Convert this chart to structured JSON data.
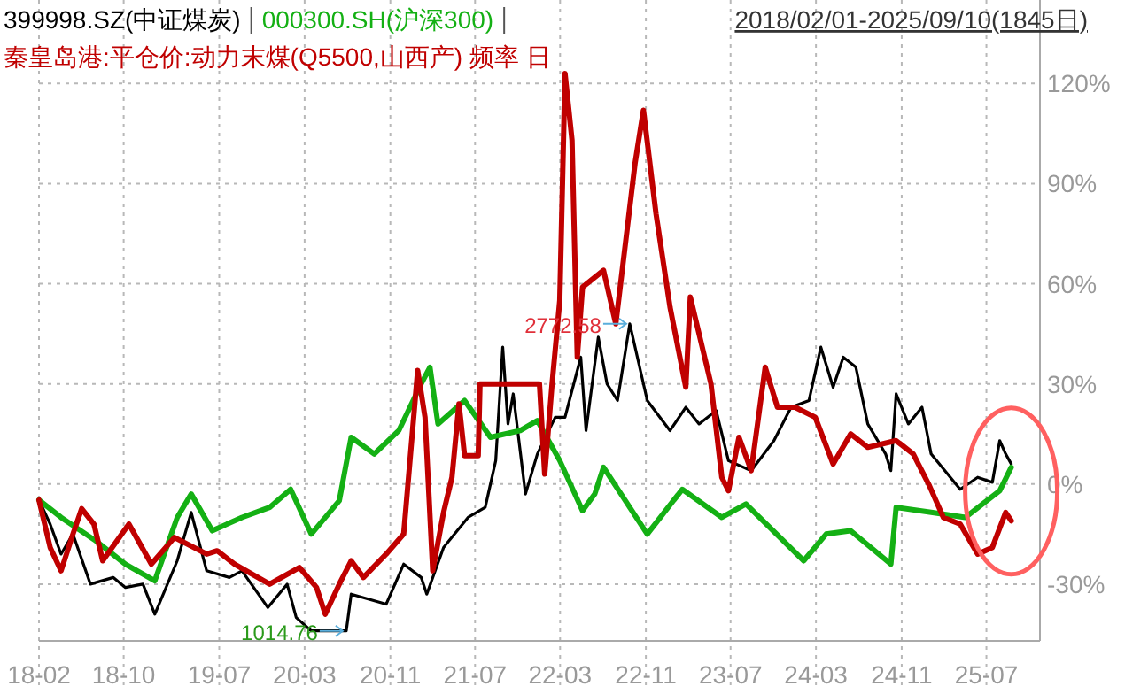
{
  "chart_data": {
    "type": "line",
    "subtitle": "2018/02/01-2025/09/10(1845日)",
    "legend": "top left",
    "grid": true,
    "xlim": [
      "2018-02-01",
      "2025-12-01"
    ],
    "xticks": [
      {
        "value": "2018-02-01",
        "label": "18-02"
      },
      {
        "value": "2018-10-01",
        "label": "18-10"
      },
      {
        "value": "2019-07-01",
        "label": "19-07"
      },
      {
        "value": "2020-03-01",
        "label": "20-03"
      },
      {
        "value": "2020-11-01",
        "label": "20-11"
      },
      {
        "value": "2021-07-01",
        "label": "21-07"
      },
      {
        "value": "2022-03-01",
        "label": "22-03"
      },
      {
        "value": "2022-11-01",
        "label": "22-11"
      },
      {
        "value": "2023-07-01",
        "label": "23-07"
      },
      {
        "value": "2024-03-01",
        "label": "24-03"
      },
      {
        "value": "2024-11-01",
        "label": "24-11"
      },
      {
        "value": "2025-07-01",
        "label": "25-07"
      }
    ],
    "ylim": [
      -47,
      145
    ],
    "yticks": [
      {
        "value": -30,
        "label": "-30%"
      },
      {
        "value": 0,
        "label": "0%"
      },
      {
        "value": 30,
        "label": "30%"
      },
      {
        "value": 60,
        "label": "60%"
      },
      {
        "value": 90,
        "label": "90%"
      },
      {
        "value": 120,
        "label": "120%"
      }
    ],
    "annotations": [
      {
        "text": "2772.58",
        "x": "2022-09-16",
        "y": 48
      },
      {
        "text": "1014.76",
        "x": "2020-06-28",
        "y": -44
      }
    ],
    "series": [
      {
        "name": "399998.SZ(中证煤炭)",
        "color": "#000000",
        "x": [
          "2018-02-01",
          "2018-03-05",
          "2018-04-05",
          "2018-05-09",
          "2018-06-28",
          "2018-09-01",
          "2018-10-06",
          "2018-11-25",
          "2018-12-29",
          "2019-03-03",
          "2019-04-12",
          "2019-05-26",
          "2019-07-30",
          "2019-09-04",
          "2019-11-17",
          "2020-01-11",
          "2020-02-06",
          "2020-03-20",
          "2020-06-28",
          "2020-07-12",
          "2020-10-20",
          "2020-12-09",
          "2021-01-28",
          "2021-02-13",
          "2021-04-02",
          "2021-06-11",
          "2021-07-30",
          "2021-08-29",
          "2021-09-18",
          "2021-10-03",
          "2021-10-18",
          "2021-11-22",
          "2021-12-26",
          "2022-02-15",
          "2022-03-15",
          "2022-04-29",
          "2022-05-14",
          "2022-06-18",
          "2022-07-13",
          "2022-08-12",
          "2022-09-16",
          "2022-11-05",
          "2023-01-09",
          "2023-02-23",
          "2023-04-02",
          "2023-05-21",
          "2023-06-25",
          "2023-08-29",
          "2023-11-02",
          "2023-12-21",
          "2024-02-10",
          "2024-03-15",
          "2024-04-19",
          "2024-05-18",
          "2024-06-23",
          "2024-07-27",
          "2024-09-16",
          "2024-10-01",
          "2024-10-16",
          "2024-11-20",
          "2024-12-29",
          "2025-01-24",
          "2025-04-17",
          "2025-06-06",
          "2025-07-18",
          "2025-08-08",
          "2025-08-25",
          "2025-09-10"
        ],
        "values": [
          -4.8,
          -12,
          -21,
          -15,
          -30,
          -28,
          -31,
          -30,
          -39,
          -23,
          -8.5,
          -26,
          -28,
          -26,
          -37,
          -30,
          -40,
          -44,
          -44,
          -33,
          -36,
          -24,
          -28,
          -33,
          -19,
          -10,
          -7,
          7,
          41,
          18,
          27,
          -3,
          9,
          20,
          20,
          38,
          16,
          44,
          30,
          25,
          48,
          25,
          16,
          23,
          18,
          22,
          7,
          4,
          13,
          23,
          25,
          41,
          29,
          38,
          35,
          18,
          9,
          4,
          27,
          18,
          23,
          9,
          -1.6,
          2,
          0.5,
          13,
          9,
          6
        ]
      },
      {
        "name": "000300.SH(沪深300)",
        "color": "#14b014",
        "x": [
          "2018-02-01",
          "2018-04-05",
          "2018-07-13",
          "2018-10-06",
          "2018-12-29",
          "2019-03-03",
          "2019-04-12",
          "2019-06-11",
          "2019-09-04",
          "2019-11-22",
          "2020-01-21",
          "2020-03-20",
          "2020-06-08",
          "2020-07-12",
          "2020-09-16",
          "2020-11-25",
          "2021-01-28",
          "2021-02-22",
          "2021-03-17",
          "2021-06-01",
          "2021-08-14",
          "2021-11-07",
          "2021-12-26",
          "2022-02-28",
          "2022-05-04",
          "2022-06-08",
          "2022-07-03",
          "2022-11-05",
          "2023-02-13",
          "2023-06-06",
          "2023-08-14",
          "2024-01-26",
          "2024-03-30",
          "2024-06-08",
          "2024-10-01",
          "2024-10-16",
          "2025-01-24",
          "2025-05-02",
          "2025-08-08",
          "2025-09-10"
        ],
        "values": [
          -4.8,
          -10,
          -17,
          -24,
          -29,
          -10,
          -3,
          -14,
          -10,
          -7,
          -1.6,
          -15,
          -5,
          14,
          9,
          16,
          30,
          35,
          18,
          25,
          14,
          16,
          19,
          7,
          -8,
          -3,
          5,
          -15,
          -1.6,
          -10,
          -6,
          -23,
          -15,
          -14,
          -24,
          -7,
          -8.5,
          -10,
          -2,
          5
        ]
      },
      {
        "name": "秦皇岛港:平仓价:动力末煤(Q5500,山西产) 频率 日",
        "color": "#c00000",
        "x": [
          "2018-02-01",
          "2018-03-05",
          "2018-04-05",
          "2018-05-09",
          "2018-06-03",
          "2018-07-08",
          "2018-08-02",
          "2018-10-16",
          "2018-12-19",
          "2019-02-23",
          "2019-05-26",
          "2019-06-25",
          "2019-08-14",
          "2019-11-22",
          "2020-02-15",
          "2020-04-04",
          "2020-04-29",
          "2020-06-08",
          "2020-07-12",
          "2020-08-16",
          "2020-10-20",
          "2020-12-09",
          "2021-01-18",
          "2021-02-08",
          "2021-03-02",
          "2021-04-02",
          "2021-04-26",
          "2021-05-16",
          "2021-06-01",
          "2021-07-10",
          "2021-07-15",
          "2022-01-01",
          "2022-01-16",
          "2022-02-06",
          "2022-02-28",
          "2022-03-15",
          "2022-04-04",
          "2022-04-19",
          "2022-05-04",
          "2022-07-03",
          "2022-08-07",
          "2022-10-01",
          "2022-10-25",
          "2022-11-30",
          "2023-01-09",
          "2023-02-23",
          "2023-03-08",
          "2023-05-06",
          "2023-06-06",
          "2023-06-25",
          "2023-07-25",
          "2023-08-29",
          "2023-10-08",
          "2023-11-12",
          "2024-01-01",
          "2024-02-28",
          "2024-04-19",
          "2024-06-08",
          "2024-07-27",
          "2024-10-16",
          "2024-12-04",
          "2025-01-19",
          "2025-02-28",
          "2025-04-17",
          "2025-06-06",
          "2025-07-18",
          "2025-08-25",
          "2025-09-10"
        ],
        "values": [
          -4.8,
          -19,
          -26,
          -15,
          -7.4,
          -12,
          -23,
          -12,
          -24,
          -16,
          -21,
          -20,
          -24,
          -30,
          -25,
          -31,
          -39,
          -30,
          -23,
          -28,
          -21,
          -15,
          34,
          20,
          -26,
          -8.5,
          2,
          24,
          8.5,
          8.5,
          30,
          30,
          3,
          30,
          55,
          123,
          103,
          38,
          59,
          64,
          48,
          96,
          112,
          81,
          53,
          29,
          56,
          30,
          2,
          -2,
          14,
          4,
          35,
          23,
          23,
          20,
          6,
          15,
          11,
          13,
          9,
          -0.5,
          -10,
          -12,
          -21,
          -19,
          -8.5,
          -11
        ]
      }
    ]
  }
}
